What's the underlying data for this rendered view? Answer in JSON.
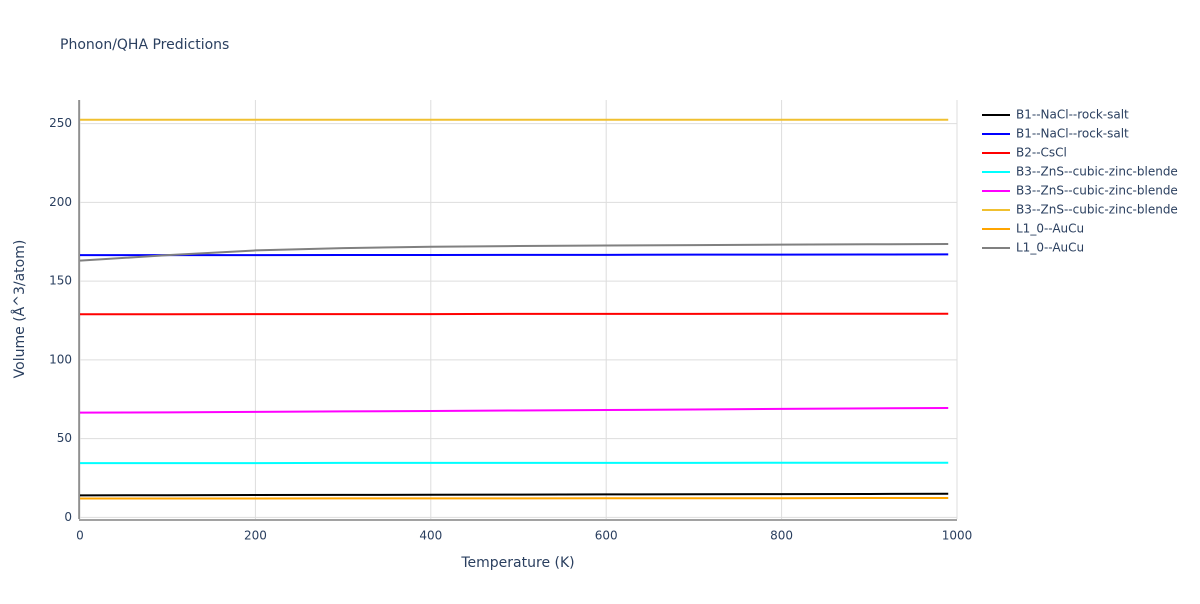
{
  "chart_data": {
    "type": "line",
    "title": "Phonon/QHA Predictions",
    "x_label": "Temperature (K)",
    "y_label": "Volume (Å^3/atom)",
    "x": [
      0,
      100,
      200,
      300,
      400,
      500,
      600,
      700,
      800,
      900,
      990
    ],
    "xlim": [
      0,
      1000
    ],
    "xticks": [
      0,
      200,
      400,
      600,
      800,
      1000
    ],
    "ylim": [
      -1,
      265
    ],
    "yticks": [
      0,
      50,
      100,
      150,
      200,
      250
    ],
    "grid": true,
    "legend": "right",
    "series": [
      {
        "name": "B1--NaCl--rock-salt",
        "color": "#000000",
        "values": [
          14.0,
          14.1,
          14.2,
          14.3,
          14.4,
          14.5,
          14.6,
          14.7,
          14.8,
          14.9,
          15.0
        ]
      },
      {
        "name": "B1--NaCl--rock-salt",
        "color": "#0000ff",
        "values": [
          166.5,
          166.5,
          166.5,
          166.6,
          166.6,
          166.7,
          166.7,
          166.8,
          166.8,
          166.9,
          167.0
        ]
      },
      {
        "name": "B2--CsCl",
        "color": "#ff0000",
        "values": [
          129.0,
          129.0,
          129.1,
          129.1,
          129.1,
          129.2,
          129.2,
          129.2,
          129.3,
          129.3,
          129.3
        ]
      },
      {
        "name": "B3--ZnS--cubic-zinc-blende",
        "color": "#00ffff",
        "values": [
          34.5,
          34.5,
          34.5,
          34.6,
          34.6,
          34.6,
          34.6,
          34.6,
          34.7,
          34.7,
          34.7
        ]
      },
      {
        "name": "B3--ZnS--cubic-zinc-blende",
        "color": "#ff00ff",
        "values": [
          66.5,
          66.7,
          67.0,
          67.3,
          67.6,
          67.9,
          68.2,
          68.5,
          68.9,
          69.2,
          69.5
        ]
      },
      {
        "name": "B3--ZnS--cubic-zinc-blende",
        "color": "#f0c030",
        "values": [
          252.5,
          252.5,
          252.5,
          252.5,
          252.5,
          252.5,
          252.5,
          252.5,
          252.5,
          252.5,
          252.5
        ]
      },
      {
        "name": "L1_0--AuCu",
        "color": "#ffa500",
        "values": [
          12.0,
          12.0,
          12.0,
          12.1,
          12.1,
          12.1,
          12.2,
          12.2,
          12.2,
          12.3,
          12.3
        ]
      },
      {
        "name": "L1_0--AuCu",
        "color": "#808080",
        "values": [
          163.0,
          166.5,
          169.5,
          171.0,
          171.8,
          172.3,
          172.6,
          172.9,
          173.2,
          173.4,
          173.6
        ]
      }
    ]
  }
}
